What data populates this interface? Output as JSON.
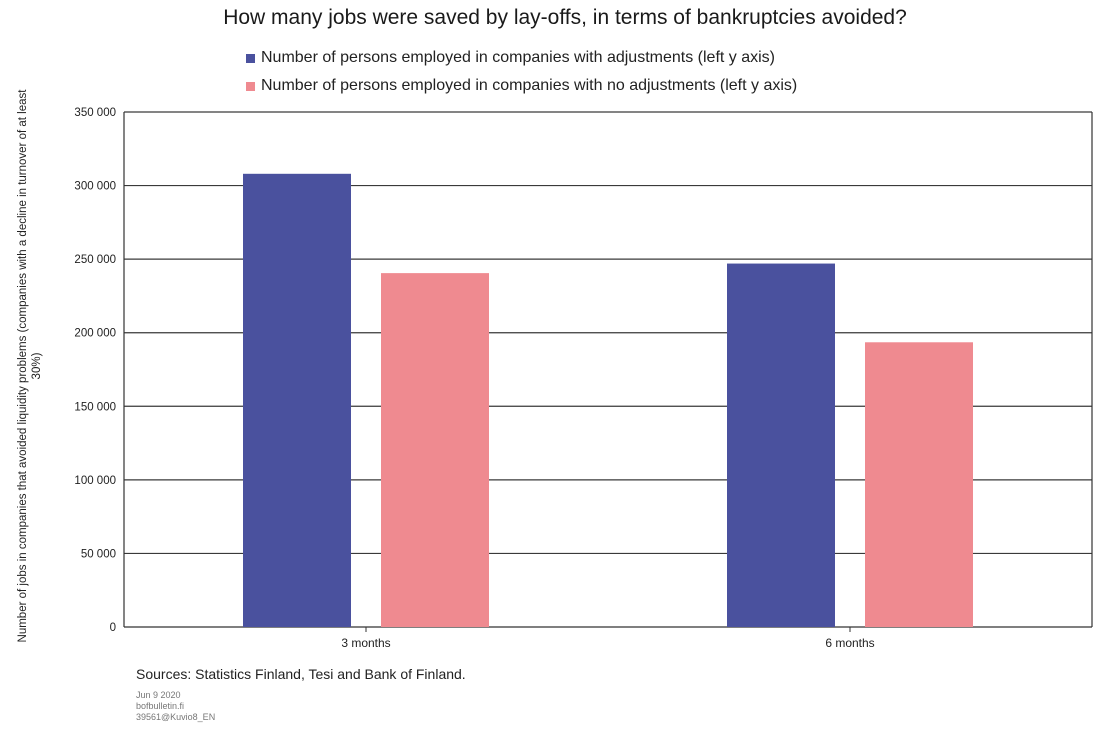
{
  "chart_data": {
    "type": "bar",
    "title": "How many jobs were saved by lay-offs, in terms of bankruptcies  avoided?",
    "ylabel": "Number of jobs in companies that avoided liquidity problems (companies with a decline in turnover of at least 30%)",
    "categories": [
      "3 months",
      "6 months"
    ],
    "series": [
      {
        "name": "Number of persons employed in companies with adjustments (left y axis)",
        "color": "#4a519e",
        "values": [
          308000,
          247000
        ]
      },
      {
        "name": "Number of persons employed in companies with no adjustments (left y axis)",
        "color": "#ef8a90",
        "values": [
          240500,
          193500
        ]
      }
    ],
    "ylim": [
      0,
      350000
    ],
    "yticks": [
      0,
      50000,
      100000,
      150000,
      200000,
      250000,
      300000,
      350000
    ],
    "ytick_labels": [
      "0",
      "50 000",
      "100 000",
      "150 000",
      "200 000",
      "250 000",
      "300 000",
      "350 000"
    ],
    "grid": true,
    "legend_position": "top"
  },
  "footer": {
    "sources": "Sources: Statistics Finland, Tesi and Bank of Finland.",
    "date": "Jun 9 2020",
    "site": "bofbulletin.fi",
    "code": "39561@Kuvio8_EN"
  }
}
